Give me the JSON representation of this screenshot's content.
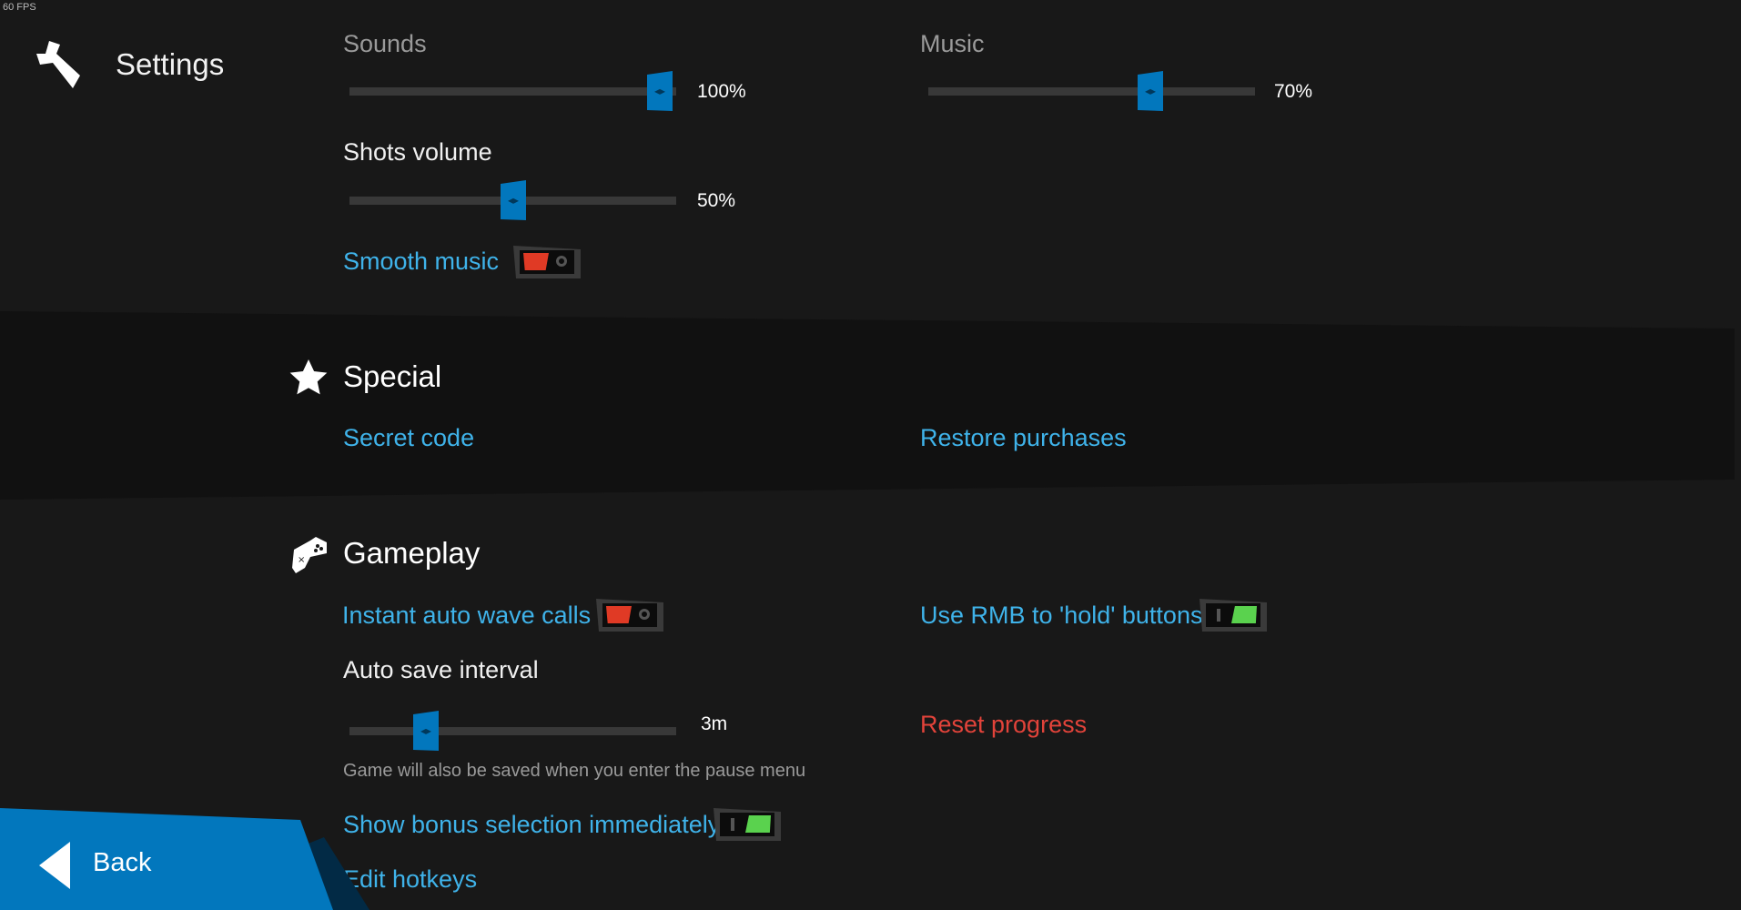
{
  "fps": "60 FPS",
  "header": {
    "title": "Settings",
    "icon": "wrench-icon"
  },
  "audio": {
    "sounds": {
      "label": "Sounds",
      "value_text": "100%",
      "value": 100
    },
    "music": {
      "label": "Music",
      "value_text": "70%",
      "value": 70
    },
    "shots": {
      "label": "Shots volume",
      "value_text": "50%",
      "value": 50
    },
    "smooth_music": {
      "label": "Smooth music",
      "on": false
    }
  },
  "special": {
    "title": "Special",
    "icon": "star-icon",
    "secret_code": "Secret code",
    "restore": "Restore purchases"
  },
  "gameplay": {
    "title": "Gameplay",
    "icon": "gamepad-icon",
    "instant_wave": {
      "label": "Instant auto wave calls",
      "on": false
    },
    "rmb_hold": {
      "label": "Use RMB to 'hold' buttons",
      "on": true
    },
    "autosave": {
      "label": "Auto save interval",
      "value_text": "3m",
      "fraction": 0.25,
      "hint": "Game will also be saved when you enter the pause menu"
    },
    "reset": "Reset progress",
    "bonus": {
      "label": "Show bonus selection immediately",
      "on": true
    },
    "hotkeys": "Edit hotkeys"
  },
  "back": {
    "label": "Back"
  },
  "colors": {
    "accent": "#0277bd",
    "link": "#3fb3ea",
    "danger": "#e2433a",
    "on": "#5ad24e",
    "off": "#e03a25"
  }
}
